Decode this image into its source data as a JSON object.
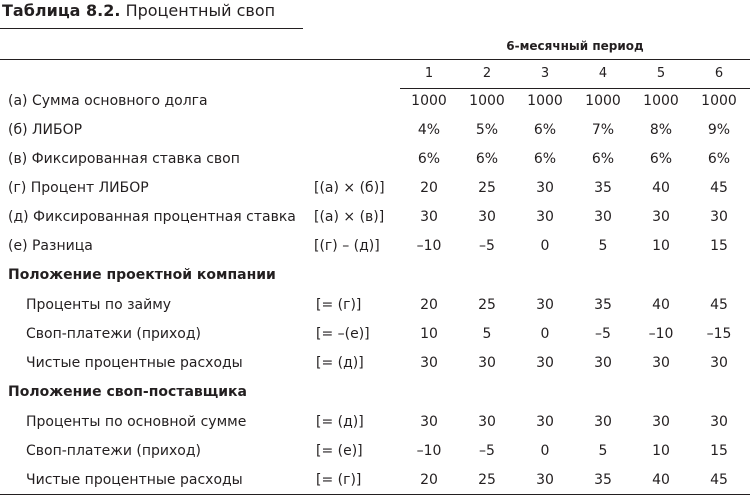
{
  "title": {
    "number": "Таблица 8.2.",
    "text": "Процентный своп"
  },
  "period_header": "6-месячный период",
  "columns": [
    "1",
    "2",
    "3",
    "4",
    "5",
    "6"
  ],
  "rows": [
    {
      "label": "(а) Сумма основного долга",
      "formula": "",
      "values": [
        "1000",
        "1000",
        "1000",
        "1000",
        "1000",
        "1000"
      ]
    },
    {
      "label": "(б) ЛИБОР",
      "formula": "",
      "values": [
        "4%",
        "5%",
        "6%",
        "7%",
        "8%",
        "9%"
      ]
    },
    {
      "label": "(в) Фиксированная ставка своп",
      "formula": "",
      "values": [
        "6%",
        "6%",
        "6%",
        "6%",
        "6%",
        "6%"
      ]
    },
    {
      "label": "(г) Процент ЛИБОР",
      "formula": "[(а) × (б)]",
      "values": [
        "20",
        "25",
        "30",
        "35",
        "40",
        "45"
      ]
    },
    {
      "label": "(д) Фиксированная процентная ставка",
      "formula": "[(а) × (в)]",
      "values": [
        "30",
        "30",
        "30",
        "30",
        "30",
        "30"
      ]
    },
    {
      "label": "(е) Разница",
      "formula": "[(г) – (д)]",
      "values": [
        "–10",
        "–5",
        "0",
        "5",
        "10",
        "15"
      ]
    },
    {
      "label": "Положение проектной компании",
      "formula": "",
      "values": [
        "",
        "",
        "",
        "",
        "",
        ""
      ]
    },
    {
      "label": "Проценты по займу",
      "formula": "[= (г)]",
      "values": [
        "20",
        "25",
        "30",
        "35",
        "40",
        "45"
      ]
    },
    {
      "label": "Своп-платежи (приход)",
      "formula": "[= –(е)]",
      "values": [
        "10",
        "5",
        "0",
        "–5",
        "–10",
        "–15"
      ]
    },
    {
      "label": "Чистые процентные расходы",
      "formula": "[= (д)]",
      "values": [
        "30",
        "30",
        "30",
        "30",
        "30",
        "30"
      ]
    },
    {
      "label": "Положение своп-поставщика",
      "formula": "",
      "values": [
        "",
        "",
        "",
        "",
        "",
        ""
      ]
    },
    {
      "label": "Проценты по основной сумме",
      "formula": "[= (д)]",
      "values": [
        "30",
        "30",
        "30",
        "30",
        "30",
        "30"
      ]
    },
    {
      "label": "Своп-платежи (приход)",
      "formula": "[= (е)]",
      "values": [
        "–10",
        "–5",
        "0",
        "5",
        "10",
        "15"
      ]
    },
    {
      "label": "Чистые процентные расходы",
      "formula": "[= (г)]",
      "values": [
        "20",
        "25",
        "30",
        "35",
        "40",
        "45"
      ]
    }
  ]
}
